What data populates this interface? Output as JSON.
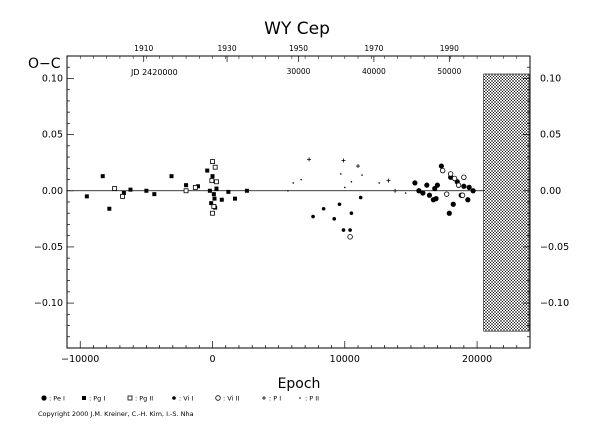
{
  "chart_data": {
    "type": "scatter",
    "title": "WY Cep",
    "ylabel": "O−C",
    "xlabel": "Epoch",
    "xlim": [
      -11000,
      24000
    ],
    "ylim": [
      -0.14,
      0.12
    ],
    "x_ticks": [
      -10000,
      0,
      10000,
      20000
    ],
    "x_tick_labels": [
      "−10000",
      "0",
      "10000",
      "20000"
    ],
    "y_ticks": [
      0.1,
      0.05,
      0.0,
      -0.05,
      -0.1
    ],
    "y_tick_labels_left": [
      "0.10",
      "0.05",
      "0.00",
      "−0.05",
      "−0.10"
    ],
    "y_tick_labels_right": [
      "0.10",
      "0.05",
      "0.00",
      "−0.05",
      "−0.10"
    ],
    "top_year_ticks": [
      {
        "label": "1910",
        "epoch": -5200
      },
      {
        "label": "1930",
        "epoch": 1100
      },
      {
        "label": "1950",
        "epoch": 6500
      },
      {
        "label": "1970",
        "epoch": 12200
      },
      {
        "label": "1990",
        "epoch": 17900
      }
    ],
    "top_jd_prefix": "JD 2420000",
    "top_jd_ticks": [
      {
        "label": "30000",
        "epoch": 6500
      },
      {
        "label": "40000",
        "epoch": 12200
      },
      {
        "label": "50000",
        "epoch": 17900
      }
    ],
    "hatched_region_start": 20500,
    "zero_line": 0,
    "series": [
      {
        "name": ": Pe I",
        "symbol": "filled-circle",
        "points": [
          [
            15300,
            0.007
          ],
          [
            15600,
            0.0
          ],
          [
            15900,
            -0.002
          ],
          [
            16200,
            0.005
          ],
          [
            16400,
            -0.004
          ],
          [
            16800,
            0.002
          ],
          [
            17000,
            0.005
          ],
          [
            17300,
            0.022
          ],
          [
            16900,
            -0.007
          ],
          [
            18000,
            0.012
          ],
          [
            18500,
            0.008
          ],
          [
            19000,
            0.004
          ],
          [
            19400,
            0.003
          ],
          [
            19700,
            0.0
          ],
          [
            18800,
            -0.004
          ],
          [
            19300,
            -0.008
          ],
          [
            18200,
            -0.012
          ],
          [
            17900,
            -0.02
          ],
          [
            16700,
            -0.008
          ]
        ]
      },
      {
        "name": ": Pg I",
        "symbol": "filled-square",
        "points": [
          [
            -9500,
            -0.005
          ],
          [
            -8300,
            0.013
          ],
          [
            -6700,
            -0.002
          ],
          [
            -6200,
            0.001
          ],
          [
            -5000,
            0.0
          ],
          [
            -4400,
            -0.003
          ],
          [
            -3100,
            0.013
          ],
          [
            -2000,
            0.005
          ],
          [
            -1100,
            0.004
          ],
          [
            -400,
            0.018
          ],
          [
            -200,
            0.0
          ],
          [
            0,
            0.013
          ],
          [
            100,
            -0.003
          ],
          [
            150,
            -0.007
          ],
          [
            300,
            0.002
          ],
          [
            -100,
            -0.011
          ],
          [
            700,
            -0.008
          ],
          [
            1200,
            -0.001
          ],
          [
            1700,
            -0.007
          ],
          [
            2600,
            0.0
          ],
          [
            -7800,
            -0.016
          ],
          [
            200,
            -0.015
          ]
        ]
      },
      {
        "name": ": Pg II",
        "symbol": "open-square",
        "points": [
          [
            -7400,
            0.002
          ],
          [
            -6800,
            -0.005
          ],
          [
            -2000,
            0.0
          ],
          [
            -1300,
            0.003
          ],
          [
            0,
            0.026
          ],
          [
            200,
            0.021
          ],
          [
            -50,
            0.009
          ],
          [
            300,
            0.008
          ],
          [
            100,
            -0.014
          ],
          [
            0,
            -0.02
          ]
        ]
      },
      {
        "name": ": Vi I",
        "symbol": "small-filled-circle",
        "points": [
          [
            7600,
            -0.023
          ],
          [
            8400,
            -0.016
          ],
          [
            9200,
            -0.025
          ],
          [
            9600,
            -0.012
          ],
          [
            10500,
            -0.02
          ],
          [
            11200,
            -0.006
          ],
          [
            9900,
            -0.035
          ],
          [
            10400,
            -0.035
          ]
        ]
      },
      {
        "name": ": Vi II",
        "symbol": "open-circle",
        "points": [
          [
            10400,
            -0.041
          ],
          [
            17400,
            0.018
          ],
          [
            18000,
            0.015
          ],
          [
            18300,
            0.011
          ],
          [
            18600,
            0.005
          ],
          [
            19000,
            0.012
          ],
          [
            17700,
            -0.003
          ],
          [
            18900,
            -0.004
          ]
        ]
      },
      {
        "name": ": P I",
        "symbol": "plus",
        "points": [
          [
            7300,
            0.028
          ],
          [
            9900,
            0.027
          ],
          [
            11000,
            0.022
          ],
          [
            13300,
            0.009
          ],
          [
            13800,
            0.0
          ]
        ]
      },
      {
        "name": ": P II",
        "symbol": "small-dot",
        "points": [
          [
            5700,
            0.0
          ],
          [
            6100,
            0.007
          ],
          [
            6700,
            0.01
          ],
          [
            9700,
            0.015
          ],
          [
            10000,
            0.003
          ],
          [
            10500,
            0.008
          ],
          [
            11300,
            0.014
          ],
          [
            12600,
            0.007
          ],
          [
            14600,
            -0.002
          ]
        ]
      }
    ]
  },
  "footer": {
    "copyright": "Copyright 2000 J.M. Kreiner, C.-H. Kim, I.-S. Nha"
  }
}
